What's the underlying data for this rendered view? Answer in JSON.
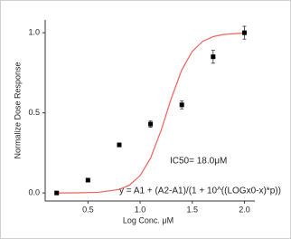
{
  "chart_data": {
    "type": "scatter",
    "x_label": "Log Conc. μM",
    "y_label": "Normalize Dose Response",
    "annotations": [
      "IC50= 18.0μM",
      "y = A1 + (A2-A1)/(1 + 10^((LOGx0-x)*p))"
    ],
    "points": {
      "color": "#000000",
      "x": [
        0.2,
        0.5,
        0.8,
        1.1,
        1.4,
        1.7,
        2.0
      ],
      "values": [
        0.0,
        0.08,
        0.3,
        0.43,
        0.55,
        0.85,
        1.0
      ],
      "errors": [
        0,
        0,
        0,
        0.02,
        0.025,
        0.04,
        0.04
      ]
    },
    "fit": {
      "color": "#f0605a",
      "x": [
        0.2,
        0.4,
        0.6,
        0.8,
        0.9,
        1.0,
        1.1,
        1.2,
        1.3,
        1.4,
        1.5,
        1.6,
        1.7,
        1.8,
        2.0
      ],
      "values": [
        0.0,
        0.001,
        0.004,
        0.022,
        0.05,
        0.108,
        0.217,
        0.388,
        0.592,
        0.769,
        0.884,
        0.946,
        0.976,
        0.989,
        0.998
      ]
    },
    "xlim": [
      0.09,
      2.1
    ],
    "xticks": [
      0.5,
      {
        "value": 1,
        "label": "1.0"
      },
      1.5,
      {
        "value": 2,
        "label": "2.0"
      }
    ],
    "ylim": [
      -0.05,
      1.08
    ],
    "yticks": [
      {
        "value": 0,
        "label": "0.0"
      },
      0.5,
      {
        "value": 1,
        "label": "1.0"
      }
    ]
  }
}
